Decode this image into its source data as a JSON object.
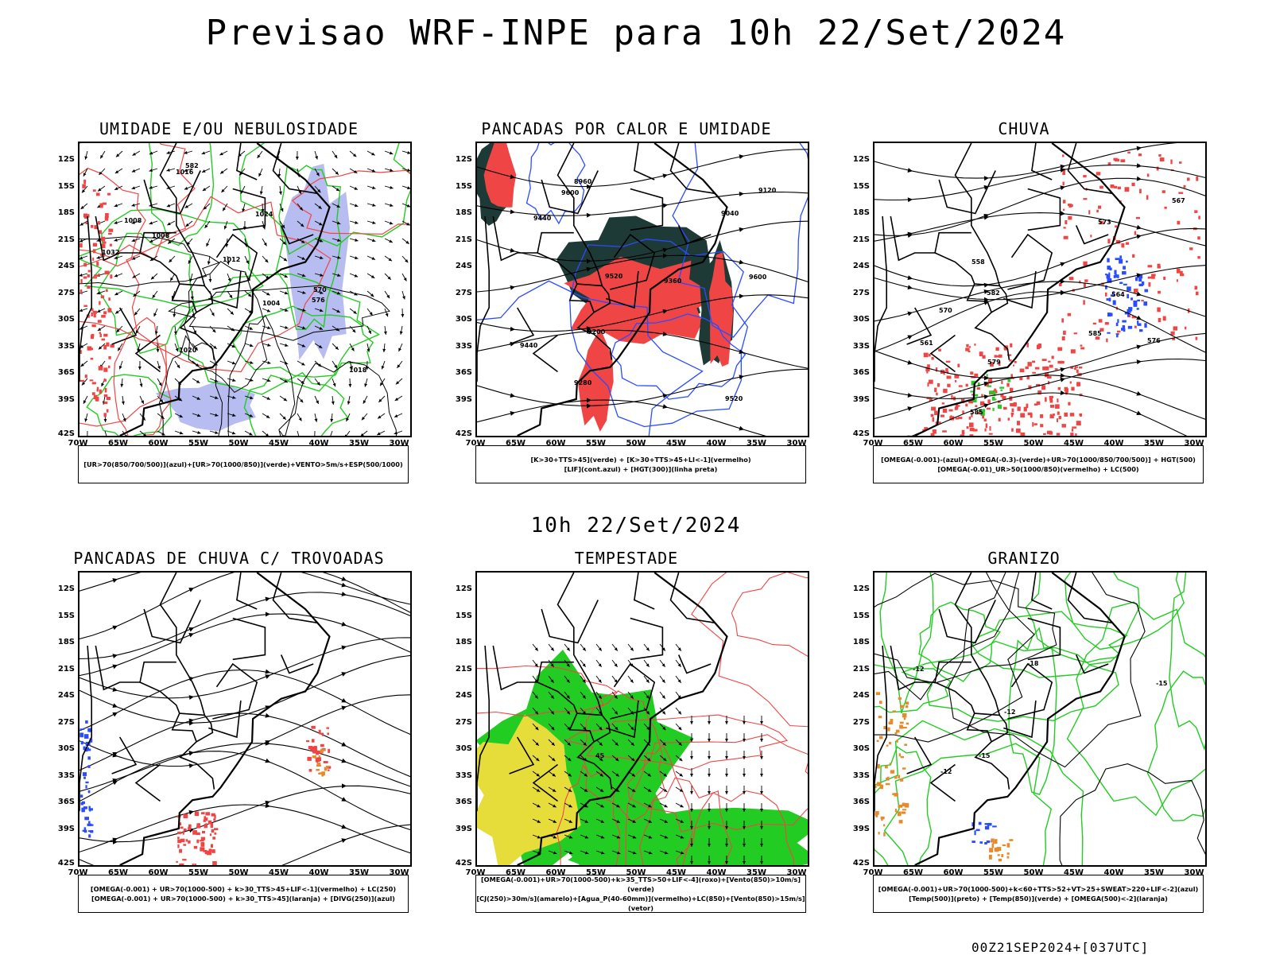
{
  "main_title": "Previsao WRF-INPE  para 10h 22/Set/2024",
  "mid_title": "10h 22/Set/2024",
  "footer": "00Z21SEP2024+[037UTC]",
  "axes": {
    "lat_labels": [
      "12S",
      "15S",
      "18S",
      "21S",
      "24S",
      "27S",
      "30S",
      "33S",
      "36S",
      "39S",
      "42S"
    ],
    "lon_labels": [
      "70W",
      "65W",
      "60W",
      "55W",
      "50W",
      "45W",
      "40W",
      "35W",
      "30W"
    ]
  },
  "colors": {
    "red": "#f04545",
    "blue": "#2a4cff",
    "green": "#22cc22",
    "lavender": "#aab0ee",
    "darkteal": "#1e3a36",
    "yellow": "#e6dc3a",
    "orange": "#e88a2a"
  },
  "panels": [
    {
      "id": "umidade",
      "title": "UMIDADE E/OU NEBULOSIDADE",
      "legend": [
        "[UR>70(850/700/500)](azul)+[UR>70(1000/850)](verde)+VENTO>5m/s+ESP(500/1000)"
      ],
      "contour_labels": [
        "1008",
        "1008",
        "1012",
        "1016",
        "1020",
        "1024",
        "1032",
        "1004",
        "1018",
        "576",
        "582",
        "570"
      ]
    },
    {
      "id": "pancadas",
      "title": "PANCADAS POR CALOR E UMIDADE",
      "legend": [
        "[K>30+TTS>45](verde) + [K>30+TTS>45+LI<-1](vermelho)",
        "[LIF](cont.azul) + [HGT(300)](linha preta)"
      ],
      "contour_labels": [
        "9600",
        "9600",
        "9520",
        "9520",
        "9440",
        "9440",
        "9360",
        "9280",
        "9200",
        "9120",
        "9040",
        "8960"
      ]
    },
    {
      "id": "chuva",
      "title": "CHUVA",
      "legend": [
        "[OMEGA(-0.001)-(azul)+OMEGA(-0.3)-(verde)+UR>70(1000/850/700/500)] + HGT(500)",
        "[OMEGA(-0.01)_UR>50(1000/850)(vermelho) + LC(500)"
      ],
      "contour_labels": [
        "585",
        "585",
        "582",
        "579",
        "576",
        "573",
        "570",
        "567",
        "564",
        "561",
        "558"
      ]
    },
    {
      "id": "trovoadas",
      "title": "PANCADAS DE CHUVA C/ TROVOADAS",
      "legend": [
        "[OMEGA(-0.001) + UR>70(1000-500) + k>30_TTS>45+LIF<-1](vermelho) + LC(250)",
        "[OMEGA(-0.001) + UR>70(1000-500) + k>30_TTS>45](laranja) + [DIVG(250)](azul)"
      ],
      "contour_labels": []
    },
    {
      "id": "tempestade",
      "title": "TEMPESTADE",
      "legend": [
        "[OMEGA(-0.001)+UR>70(1000-500)+k>35_TTS>50+LIF<-4](roxo)+[Vento(850)>10m/s](verde)",
        "[CJ(250)>30m/s](amarelo)+[Agua_P(40-60mm)](vermelho)+LC(850)+[Vento(850)>15m/s](vetor)"
      ],
      "contour_labels": [
        "45"
      ]
    },
    {
      "id": "granizo",
      "title": "GRANIZO",
      "legend": [
        "[OMEGA(-0.001)+UR>70(1000-500)+k<60+TTS>52+VT>25+SWEAT>220+LIF<-2](azul)",
        "[Temp(500)](preto) + [Temp(850)](verde) + [OMEGA(500)<-2](laranja)"
      ],
      "contour_labels": [
        "-12",
        "-12",
        "-12",
        "-15",
        "-15",
        "-18"
      ]
    }
  ]
}
